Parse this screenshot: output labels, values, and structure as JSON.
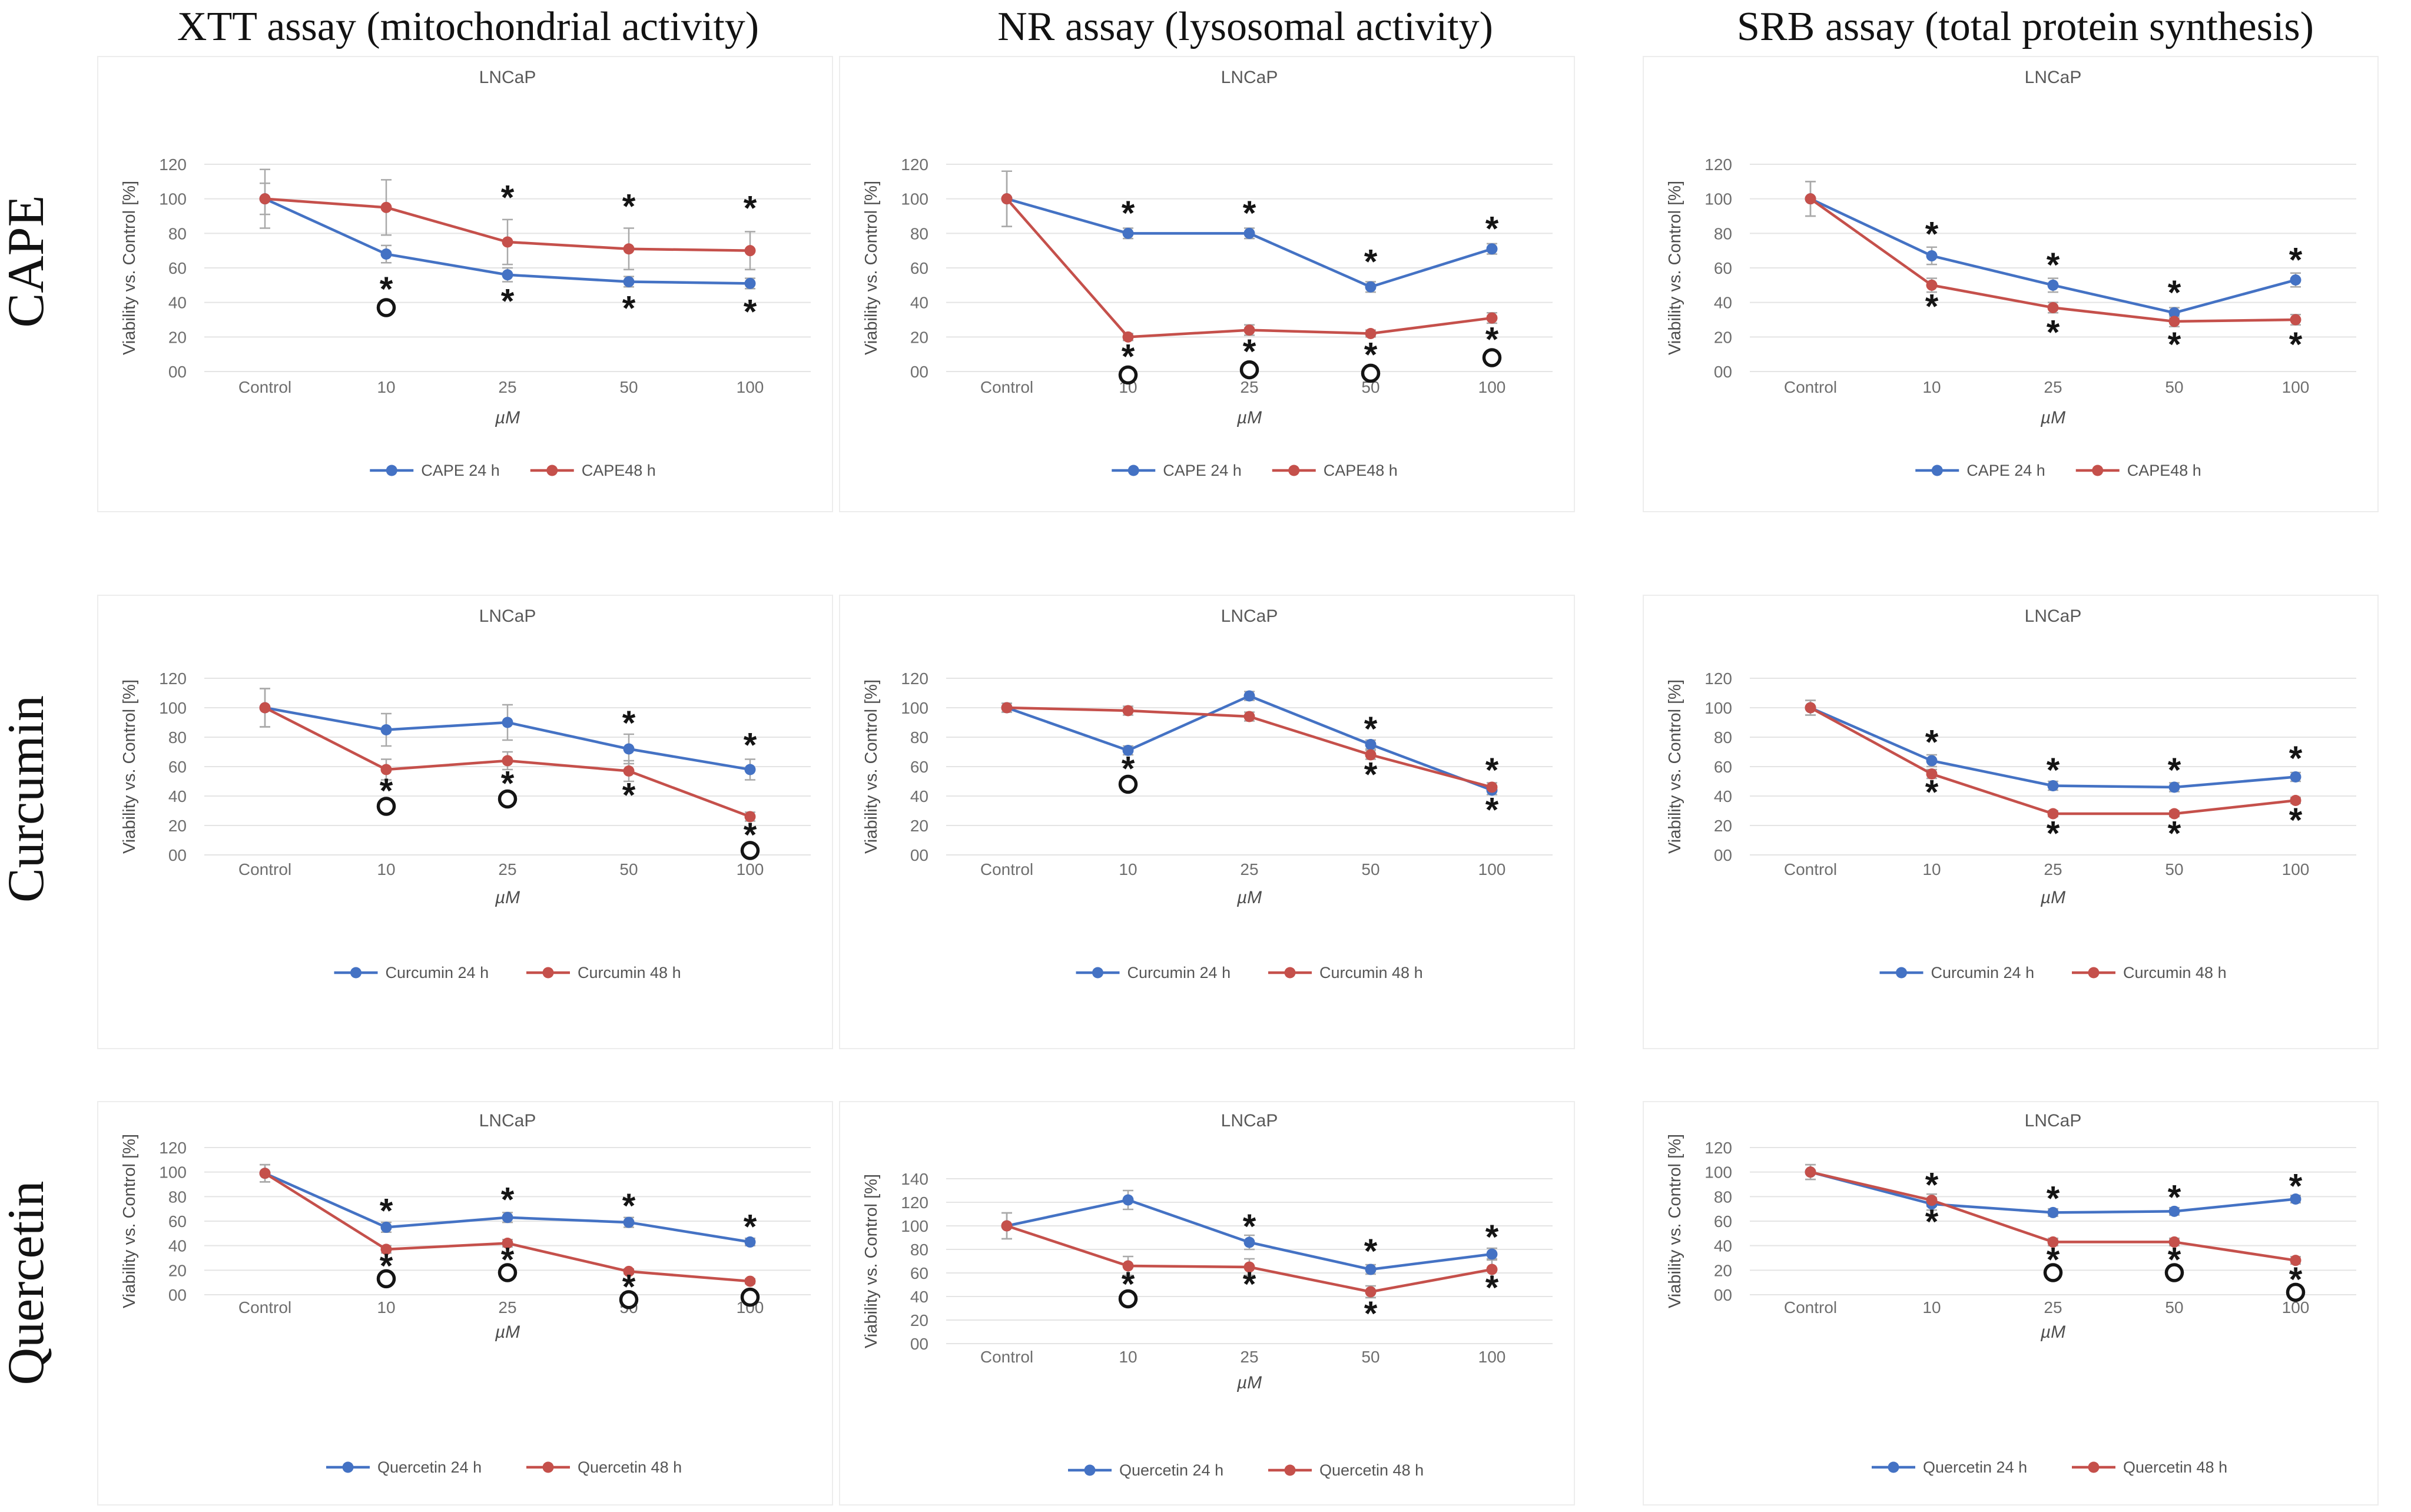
{
  "figure": {
    "column_headers": [
      "XTT assay (mitochondrial activity)",
      "NR assay (lysosomal activity)",
      "SRB assay (total protein synthesis)"
    ],
    "row_labels": [
      "CAPE",
      "Curcumin",
      "Quercetin"
    ]
  },
  "colors": {
    "series_24h": "#4472C4",
    "series_48h": "#C5504B",
    "error_bar": "#A9A9A9",
    "gridline": "#E4E4E4",
    "axis_text": "#6E6E6E",
    "title_text": "#595959",
    "legend_text": "#555555",
    "annotation": "#141414",
    "panel_border": "#EDEDED"
  },
  "chart_data": [
    {
      "type": "line",
      "compound": "CAPE",
      "assay": "XTT",
      "title": "LNCaP",
      "xlabel": "µM",
      "ylabel": "Viability vs. Control [%]",
      "categories": [
        "Control",
        "10",
        "25",
        "50",
        "100"
      ],
      "yticks": [
        0,
        20,
        40,
        60,
        80,
        100,
        120
      ],
      "ytick_labels": [
        "00",
        "20",
        "40",
        "60",
        "80",
        "100",
        "120"
      ],
      "ylim": [
        0,
        130
      ],
      "grid": true,
      "legend_position": "bottom",
      "series": [
        {
          "name": "CAPE 24 h",
          "color_key": "series_24h",
          "values": [
            100,
            68,
            56,
            52,
            51
          ],
          "errors": [
            9,
            5,
            4,
            3,
            3
          ]
        },
        {
          "name": "CAPE48 h",
          "color_key": "series_48h",
          "values": [
            100,
            95,
            75,
            71,
            70
          ],
          "errors": [
            17,
            16,
            13,
            12,
            11
          ]
        }
      ],
      "annotations": [
        {
          "x": 2,
          "y": 101,
          "glyph": "*"
        },
        {
          "x": 3,
          "y": 96,
          "glyph": "*"
        },
        {
          "x": 4,
          "y": 95,
          "glyph": "*"
        },
        {
          "x": 1,
          "y": 48,
          "glyph": "*"
        },
        {
          "x": 1,
          "y": 37,
          "glyph": "o"
        },
        {
          "x": 2,
          "y": 41,
          "glyph": "*"
        },
        {
          "x": 3,
          "y": 37,
          "glyph": "*"
        },
        {
          "x": 4,
          "y": 35,
          "glyph": "*"
        }
      ]
    },
    {
      "type": "line",
      "compound": "CAPE",
      "assay": "NR",
      "title": "LNCaP",
      "xlabel": "µM",
      "ylabel": "Viability vs. Control [%]",
      "categories": [
        "Control",
        "10",
        "25",
        "50",
        "100"
      ],
      "yticks": [
        0,
        20,
        40,
        60,
        80,
        100,
        120
      ],
      "ytick_labels": [
        "00",
        "20",
        "40",
        "60",
        "80",
        "100",
        "120"
      ],
      "ylim": [
        0,
        130
      ],
      "grid": true,
      "legend_position": "bottom",
      "series": [
        {
          "name": "CAPE 24 h",
          "color_key": "series_24h",
          "values": [
            100,
            80,
            80,
            49,
            71
          ],
          "errors": [
            16,
            3,
            3,
            3,
            3
          ]
        },
        {
          "name": "CAPE48 h",
          "color_key": "series_48h",
          "values": [
            100,
            20,
            24,
            22,
            31
          ],
          "errors": [
            16,
            2,
            3,
            2,
            3
          ]
        }
      ],
      "annotations": [
        {
          "x": 1,
          "y": 92,
          "glyph": "*"
        },
        {
          "x": 2,
          "y": 92,
          "glyph": "*"
        },
        {
          "x": 3,
          "y": 64,
          "glyph": "*"
        },
        {
          "x": 4,
          "y": 83,
          "glyph": "*"
        },
        {
          "x": 1,
          "y": 9,
          "glyph": "*"
        },
        {
          "x": 1,
          "y": -2,
          "glyph": "o"
        },
        {
          "x": 2,
          "y": 12,
          "glyph": "*"
        },
        {
          "x": 2,
          "y": 1,
          "glyph": "o"
        },
        {
          "x": 3,
          "y": 10,
          "glyph": "*"
        },
        {
          "x": 3,
          "y": -1,
          "glyph": "o"
        },
        {
          "x": 4,
          "y": 19,
          "glyph": "*"
        },
        {
          "x": 4,
          "y": 8,
          "glyph": "o"
        }
      ]
    },
    {
      "type": "line",
      "compound": "CAPE",
      "assay": "SRB",
      "title": "LNCaP",
      "xlabel": "µM",
      "ylabel": "Viability vs. Control [%]",
      "categories": [
        "Control",
        "10",
        "25",
        "50",
        "100"
      ],
      "yticks": [
        0,
        20,
        40,
        60,
        80,
        100,
        120
      ],
      "ytick_labels": [
        "00",
        "20",
        "40",
        "60",
        "80",
        "100",
        "120"
      ],
      "ylim": [
        0,
        130
      ],
      "grid": true,
      "legend_position": "bottom",
      "series": [
        {
          "name": "CAPE 24 h",
          "color_key": "series_24h",
          "values": [
            100,
            67,
            50,
            34,
            53
          ],
          "errors": [
            10,
            5,
            4,
            3,
            4
          ]
        },
        {
          "name": "CAPE48 h",
          "color_key": "series_48h",
          "values": [
            100,
            50,
            37,
            29,
            30
          ],
          "errors": [
            10,
            4,
            3,
            3,
            3
          ]
        }
      ],
      "annotations": [
        {
          "x": 1,
          "y": 80,
          "glyph": "*"
        },
        {
          "x": 2,
          "y": 62,
          "glyph": "*"
        },
        {
          "x": 3,
          "y": 46,
          "glyph": "*"
        },
        {
          "x": 4,
          "y": 65,
          "glyph": "*"
        },
        {
          "x": 1,
          "y": 38,
          "glyph": "*"
        },
        {
          "x": 2,
          "y": 23,
          "glyph": "*"
        },
        {
          "x": 3,
          "y": 16,
          "glyph": "*"
        },
        {
          "x": 4,
          "y": 16,
          "glyph": "*"
        }
      ]
    },
    {
      "type": "line",
      "compound": "Curcumin",
      "assay": "XTT",
      "title": "LNCaP",
      "xlabel": "µM",
      "ylabel": "Viability vs. Control [%]",
      "categories": [
        "Control",
        "10",
        "25",
        "50",
        "100"
      ],
      "yticks": [
        0,
        20,
        40,
        60,
        80,
        100,
        120
      ],
      "ytick_labels": [
        "00",
        "20",
        "40",
        "60",
        "80",
        "100",
        "120"
      ],
      "ylim": [
        0,
        130
      ],
      "grid": true,
      "legend_position": "bottom",
      "series": [
        {
          "name": "Curcumin 24 h",
          "color_key": "series_24h",
          "values": [
            100,
            85,
            90,
            72,
            58
          ],
          "errors": [
            13,
            11,
            12,
            10,
            7
          ]
        },
        {
          "name": "Curcumin 48 h",
          "color_key": "series_48h",
          "values": [
            100,
            58,
            64,
            57,
            26
          ],
          "errors": [
            13,
            7,
            6,
            7,
            3
          ]
        }
      ],
      "annotations": [
        {
          "x": 3,
          "y": 90,
          "glyph": "*"
        },
        {
          "x": 4,
          "y": 75,
          "glyph": "*"
        },
        {
          "x": 1,
          "y": 44,
          "glyph": "*"
        },
        {
          "x": 1,
          "y": 33,
          "glyph": "o"
        },
        {
          "x": 2,
          "y": 49,
          "glyph": "*"
        },
        {
          "x": 2,
          "y": 38,
          "glyph": "o"
        },
        {
          "x": 3,
          "y": 41,
          "glyph": "*"
        },
        {
          "x": 4,
          "y": 14,
          "glyph": "*"
        },
        {
          "x": 4,
          "y": 3,
          "glyph": "o"
        }
      ]
    },
    {
      "type": "line",
      "compound": "Curcumin",
      "assay": "NR",
      "title": "LNCaP",
      "xlabel": "µM",
      "ylabel": "Viability vs. Control [%]",
      "categories": [
        "Control",
        "10",
        "25",
        "50",
        "100"
      ],
      "yticks": [
        0,
        20,
        40,
        60,
        80,
        100,
        120
      ],
      "ytick_labels": [
        "00",
        "20",
        "40",
        "60",
        "80",
        "100",
        "120"
      ],
      "ylim": [
        0,
        130
      ],
      "grid": true,
      "legend_position": "bottom",
      "series": [
        {
          "name": "Curcumin 24 h",
          "color_key": "series_24h",
          "values": [
            100,
            71,
            108,
            75,
            44
          ],
          "errors": [
            3,
            3,
            3,
            3,
            3
          ]
        },
        {
          "name": "Curcumin 48 h",
          "color_key": "series_48h",
          "values": [
            100,
            98,
            94,
            68,
            46
          ],
          "errors": [
            3,
            3,
            3,
            3,
            3
          ]
        }
      ],
      "annotations": [
        {
          "x": 1,
          "y": 59,
          "glyph": "*"
        },
        {
          "x": 1,
          "y": 48,
          "glyph": "o"
        },
        {
          "x": 3,
          "y": 86,
          "glyph": "*"
        },
        {
          "x": 3,
          "y": 55,
          "glyph": "*"
        },
        {
          "x": 4,
          "y": 58,
          "glyph": "*"
        },
        {
          "x": 4,
          "y": 31,
          "glyph": "*"
        }
      ]
    },
    {
      "type": "line",
      "compound": "Curcumin",
      "assay": "SRB",
      "title": "LNCaP",
      "xlabel": "µM",
      "ylabel": "Viability vs. Control [%]",
      "categories": [
        "Control",
        "10",
        "25",
        "50",
        "100"
      ],
      "yticks": [
        0,
        20,
        40,
        60,
        80,
        100,
        120
      ],
      "ytick_labels": [
        "00",
        "20",
        "40",
        "60",
        "80",
        "100",
        "120"
      ],
      "ylim": [
        0,
        130
      ],
      "grid": true,
      "legend_position": "bottom",
      "series": [
        {
          "name": "Curcumin 24 h",
          "color_key": "series_24h",
          "values": [
            100,
            64,
            47,
            46,
            53
          ],
          "errors": [
            5,
            4,
            3,
            3,
            3
          ]
        },
        {
          "name": "Curcumin 48 h",
          "color_key": "series_48h",
          "values": [
            100,
            55,
            28,
            28,
            37
          ],
          "errors": [
            5,
            3,
            2,
            2,
            2
          ]
        }
      ],
      "annotations": [
        {
          "x": 1,
          "y": 77,
          "glyph": "*"
        },
        {
          "x": 2,
          "y": 58,
          "glyph": "*"
        },
        {
          "x": 3,
          "y": 58,
          "glyph": "*"
        },
        {
          "x": 4,
          "y": 66,
          "glyph": "*"
        },
        {
          "x": 1,
          "y": 43,
          "glyph": "*"
        },
        {
          "x": 2,
          "y": 15,
          "glyph": "*"
        },
        {
          "x": 3,
          "y": 15,
          "glyph": "*"
        },
        {
          "x": 4,
          "y": 24,
          "glyph": "*"
        }
      ]
    },
    {
      "type": "line",
      "compound": "Quercetin",
      "assay": "XTT",
      "title": "LNCaP",
      "xlabel": "µM",
      "ylabel": "Viability vs. Control [%]",
      "categories": [
        "Control",
        "10",
        "25",
        "50",
        "100"
      ],
      "yticks": [
        0,
        20,
        40,
        60,
        80,
        100,
        120
      ],
      "ytick_labels": [
        "00",
        "20",
        "40",
        "60",
        "80",
        "100",
        "120"
      ],
      "ylim": [
        0,
        130
      ],
      "grid": true,
      "legend_position": "bottom",
      "series": [
        {
          "name": "Quercetin 24 h",
          "color_key": "series_24h",
          "values": [
            99,
            55,
            63,
            59,
            43
          ],
          "errors": [
            7,
            4,
            4,
            4,
            3
          ]
        },
        {
          "name": "Quercetin 48 h",
          "color_key": "series_48h",
          "values": [
            99,
            37,
            42,
            19,
            11
          ],
          "errors": [
            7,
            3,
            3,
            2,
            2
          ]
        }
      ],
      "annotations": [
        {
          "x": 1,
          "y": 69,
          "glyph": "*"
        },
        {
          "x": 2,
          "y": 78,
          "glyph": "*"
        },
        {
          "x": 3,
          "y": 73,
          "glyph": "*"
        },
        {
          "x": 4,
          "y": 56,
          "glyph": "*"
        },
        {
          "x": 1,
          "y": 24,
          "glyph": "*"
        },
        {
          "x": 1,
          "y": 13,
          "glyph": "o"
        },
        {
          "x": 2,
          "y": 29,
          "glyph": "*"
        },
        {
          "x": 2,
          "y": 18,
          "glyph": "o"
        },
        {
          "x": 3,
          "y": 7,
          "glyph": "*"
        },
        {
          "x": 3,
          "y": -4,
          "glyph": "o"
        },
        {
          "x": 4,
          "y": -2,
          "glyph": "o"
        }
      ]
    },
    {
      "type": "line",
      "compound": "Quercetin",
      "assay": "NR",
      "title": "LNCaP",
      "xlabel": "µM",
      "ylabel": "Viability vs. Control [%]",
      "categories": [
        "Control",
        "10",
        "25",
        "50",
        "100"
      ],
      "yticks": [
        0,
        20,
        40,
        60,
        80,
        100,
        120,
        140
      ],
      "ytick_labels": [
        "00",
        "20",
        "40",
        "60",
        "80",
        "100",
        "120",
        "140"
      ],
      "ylim": [
        0,
        150
      ],
      "grid": true,
      "legend_position": "bottom",
      "series": [
        {
          "name": "Quercetin 24 h",
          "color_key": "series_24h",
          "values": [
            100,
            122,
            86,
            63,
            76
          ],
          "errors": [
            11,
            8,
            6,
            4,
            5
          ]
        },
        {
          "name": "Quercetin 48 h",
          "color_key": "series_48h",
          "values": [
            100,
            66,
            65,
            44,
            63
          ],
          "errors": [
            11,
            8,
            7,
            5,
            9
          ]
        }
      ],
      "annotations": [
        {
          "x": 2,
          "y": 100,
          "glyph": "*"
        },
        {
          "x": 3,
          "y": 79,
          "glyph": "*"
        },
        {
          "x": 4,
          "y": 91,
          "glyph": "*"
        },
        {
          "x": 1,
          "y": 51,
          "glyph": "*"
        },
        {
          "x": 1,
          "y": 38,
          "glyph": "o"
        },
        {
          "x": 2,
          "y": 51,
          "glyph": "*"
        },
        {
          "x": 3,
          "y": 26,
          "glyph": "*"
        },
        {
          "x": 4,
          "y": 48,
          "glyph": "*"
        }
      ]
    },
    {
      "type": "line",
      "compound": "Quercetin",
      "assay": "SRB",
      "title": "LNCaP",
      "xlabel": "µM",
      "ylabel": "Viability vs. Control [%]",
      "categories": [
        "Control",
        "10",
        "25",
        "50",
        "100"
      ],
      "yticks": [
        0,
        20,
        40,
        60,
        80,
        100,
        120
      ],
      "ytick_labels": [
        "00",
        "20",
        "40",
        "60",
        "80",
        "100",
        "120"
      ],
      "ylim": [
        0,
        130
      ],
      "grid": true,
      "legend_position": "bottom",
      "series": [
        {
          "name": "Quercetin 24 h",
          "color_key": "series_24h",
          "values": [
            100,
            74,
            67,
            68,
            78
          ],
          "errors": [
            6,
            5,
            3,
            3,
            3
          ]
        },
        {
          "name": "Quercetin 48 h",
          "color_key": "series_48h",
          "values": [
            100,
            77,
            43,
            43,
            28
          ],
          "errors": [
            6,
            5,
            3,
            3,
            3
          ]
        }
      ],
      "annotations": [
        {
          "x": 1,
          "y": 90,
          "glyph": "*"
        },
        {
          "x": 1,
          "y": 60,
          "glyph": "*"
        },
        {
          "x": 2,
          "y": 79,
          "glyph": "*"
        },
        {
          "x": 3,
          "y": 80,
          "glyph": "*"
        },
        {
          "x": 4,
          "y": 89,
          "glyph": "*"
        },
        {
          "x": 2,
          "y": 29,
          "glyph": "*"
        },
        {
          "x": 2,
          "y": 18,
          "glyph": "o"
        },
        {
          "x": 3,
          "y": 29,
          "glyph": "*"
        },
        {
          "x": 3,
          "y": 18,
          "glyph": "o"
        },
        {
          "x": 4,
          "y": 13,
          "glyph": "*"
        },
        {
          "x": 4,
          "y": 2,
          "glyph": "o"
        }
      ]
    }
  ]
}
